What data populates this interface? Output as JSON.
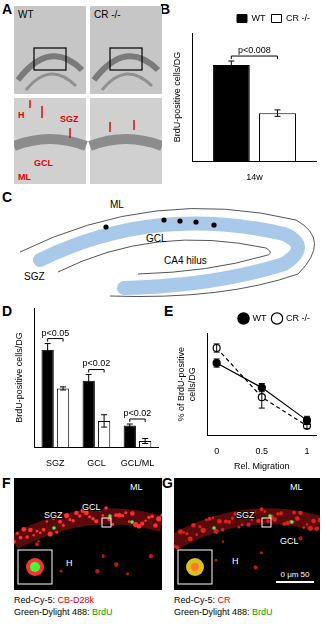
{
  "chart_data": [
    {
      "panel": "B",
      "type": "bar",
      "categories": [
        "14w"
      ],
      "series": [
        {
          "name": "WT",
          "color": "#000000",
          "values": [
            600
          ],
          "errors": [
            25
          ]
        },
        {
          "name": "CR -/-",
          "color": "#ffffff",
          "values": [
            300
          ],
          "errors": [
            20
          ]
        }
      ],
      "y_label": "BrdU-positive cells/DG",
      "ylim": [
        0,
        800
      ],
      "tick_labels": "x",
      "grid": false,
      "legend": "top-right",
      "annotations": [
        {
          "text": "p<0.008",
          "category": "14w"
        }
      ]
    },
    {
      "panel": "D",
      "type": "bar",
      "categories": [
        "SGZ",
        "GCL",
        "GCL/ML"
      ],
      "series": [
        {
          "name": "WT",
          "color": "#000000",
          "values": [
            315,
            215,
            70
          ],
          "errors": [
            20,
            20,
            5
          ]
        },
        {
          "name": "CR -/-",
          "color": "#ffffff",
          "values": [
            190,
            85,
            20
          ],
          "errors": [
            5,
            20,
            8
          ]
        }
      ],
      "y_label": "BrdU-positive cells/DG",
      "ylim": [
        0,
        450
      ],
      "tick_labels": "x",
      "grid": false,
      "annotations": [
        {
          "text": "p<0.05",
          "category": "SGZ"
        },
        {
          "text": "p<0.02",
          "category": "GCL"
        },
        {
          "text": "p<0.02",
          "category": "GCL/ML"
        }
      ]
    },
    {
      "panel": "E",
      "type": "line",
      "x": [
        0,
        0.5,
        1
      ],
      "series": [
        {
          "name": "WT",
          "color": "#000000",
          "values": [
            53,
            35,
            11
          ],
          "errors": [
            3,
            3,
            3
          ],
          "marker": "circle",
          "line_style": "solid"
        },
        {
          "name": "CR -/-",
          "color": "#ffffff",
          "values": [
            64,
            28,
            7
          ],
          "errors": [
            3,
            8,
            2
          ],
          "marker": "circle",
          "line_style": "dashed"
        }
      ],
      "x_label": "Rel. Migration",
      "y_label": "% of BrdU-positive cells/DG",
      "xlim": [
        -0.1,
        1.1
      ],
      "xticks": [
        0,
        0.5,
        1
      ],
      "ylim": [
        0,
        75
      ],
      "tick_labels": "x",
      "grid": false,
      "legend": "top-right"
    }
  ],
  "images": [
    {
      "panel": "A",
      "labels": [
        "WT",
        "CR -/-"
      ],
      "region_labels": [
        "H",
        "SGZ",
        "GCL",
        "ML"
      ]
    },
    {
      "panel": "C",
      "labels": [
        "ML",
        "SGZ",
        "GCL",
        "CA4 hilus"
      ]
    },
    {
      "panel": "F",
      "labels": [
        "ML",
        "SGZ",
        "GCL",
        "H"
      ],
      "caption": [
        {
          "stain": "Red-Cy-5:",
          "target": "CB-D28k"
        },
        {
          "stain": "Green-Dylight 488:",
          "target": "BrdU"
        }
      ]
    },
    {
      "panel": "G",
      "labels": [
        "ML",
        "GCL",
        "SGZ",
        "H"
      ],
      "scale_bar": "0 μm 50",
      "caption": [
        {
          "stain": "Red-Cy-5:",
          "target": "CR"
        },
        {
          "stain": "Green-Dylight 488:",
          "target": "BrdU"
        }
      ]
    }
  ]
}
